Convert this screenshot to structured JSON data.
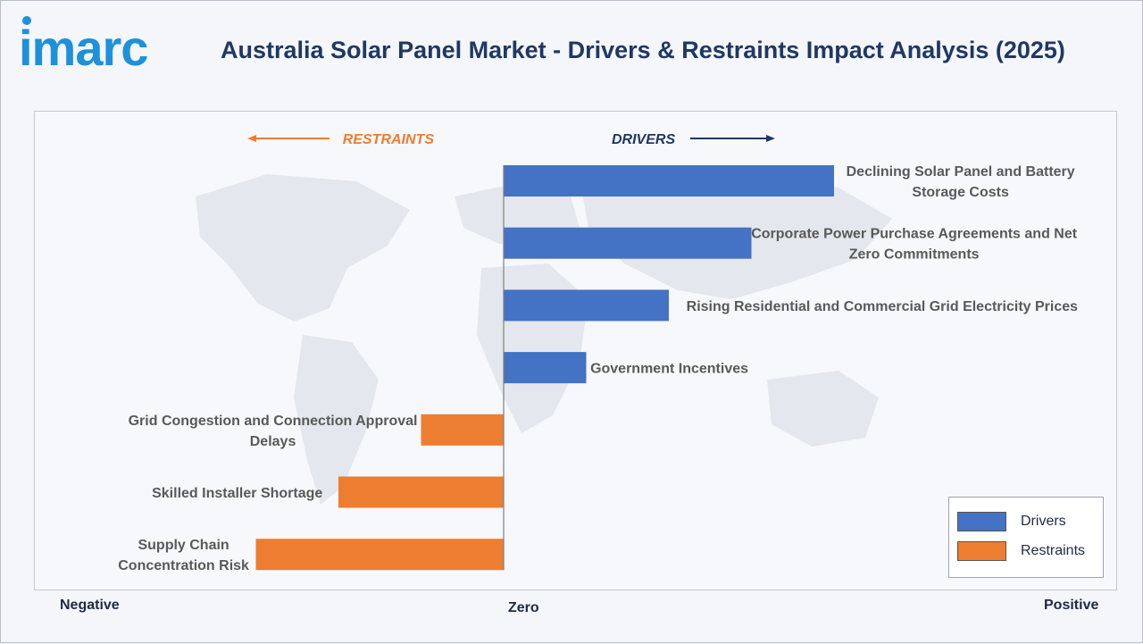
{
  "logo": {
    "text": "imarc",
    "color": "#1e90dc"
  },
  "title": "Australia Solar Panel Market - Drivers & Restraints Impact Analysis (2025)",
  "directions": {
    "restraints": "RESTRAINTS",
    "drivers": "DRIVERS"
  },
  "axis": {
    "negative": "Negative",
    "zero": "Zero",
    "positive": "Positive"
  },
  "legend": {
    "drivers": "Drivers",
    "restraints": "Restraints"
  },
  "colors": {
    "drivers": "#4472c4",
    "restraints": "#ed7d31",
    "title": "#1f3864",
    "label": "#595959",
    "drivers_arrow": "#1f3864",
    "restraints_arrow": "#ed7d31"
  },
  "chart_data": {
    "type": "bar",
    "orientation": "horizontal",
    "xlim": [
      -1,
      1
    ],
    "series": [
      {
        "name": "Drivers",
        "categories": [
          "Declining Solar Panel and Battery Storage Costs",
          "Corporate Power Purchase Agreements and Net Zero Commitments",
          "Rising Residential and Commercial Grid Electricity Prices",
          "Government Incentives"
        ],
        "values": [
          0.4,
          0.3,
          0.2,
          0.1
        ]
      },
      {
        "name": "Restraints",
        "categories": [
          "Grid Congestion and Connection Approval Delays",
          "Skilled Installer Shortage",
          "Supply Chain Concentration Risk"
        ],
        "values": [
          -0.1,
          -0.2,
          -0.3
        ]
      }
    ],
    "bars": [
      {
        "label_lines": [
          "Declining Solar Panel and Battery",
          "Storage Costs"
        ],
        "value": 0.4,
        "group": "drivers"
      },
      {
        "label_lines": [
          "Corporate Power Purchase Agreements and Net",
          "Zero Commitments"
        ],
        "value": 0.3,
        "group": "drivers"
      },
      {
        "label_lines": [
          "Rising Residential and Commercial Grid Electricity Prices"
        ],
        "value": 0.2,
        "group": "drivers"
      },
      {
        "label_lines": [
          "Government Incentives"
        ],
        "value": 0.1,
        "group": "drivers"
      },
      {
        "label_lines": [
          "Grid Congestion and Connection Approval",
          "Delays"
        ],
        "value": -0.1,
        "group": "restraints"
      },
      {
        "label_lines": [
          "Skilled Installer Shortage"
        ],
        "value": -0.2,
        "group": "restraints"
      },
      {
        "label_lines": [
          "Supply Chain",
          "Concentration Risk"
        ],
        "value": -0.3,
        "group": "restraints"
      }
    ]
  }
}
